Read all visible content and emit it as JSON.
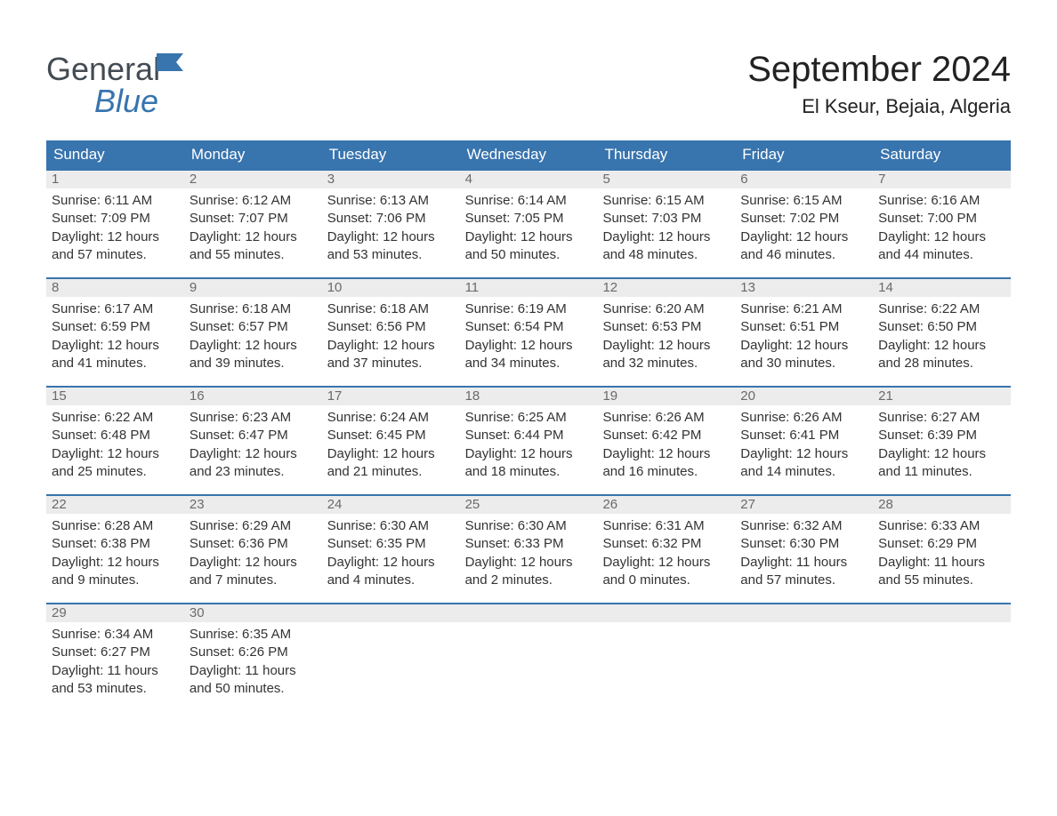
{
  "brand": {
    "general": "General",
    "blue": "Blue"
  },
  "title": "September 2024",
  "location": "El Kseur, Bejaia, Algeria",
  "colors": {
    "primary": "#3874ae",
    "header_bg": "#ececec",
    "text": "#333333",
    "daynum": "#6a6a6a",
    "white": "#ffffff"
  },
  "dayNames": [
    "Sunday",
    "Monday",
    "Tuesday",
    "Wednesday",
    "Thursday",
    "Friday",
    "Saturday"
  ],
  "labels": {
    "sunrise": "Sunrise",
    "sunset": "Sunset",
    "daylight": "Daylight"
  },
  "days": [
    {
      "n": 1,
      "sunrise": "6:11 AM",
      "sunset": "7:09 PM",
      "dl": "12 hours and 57 minutes."
    },
    {
      "n": 2,
      "sunrise": "6:12 AM",
      "sunset": "7:07 PM",
      "dl": "12 hours and 55 minutes."
    },
    {
      "n": 3,
      "sunrise": "6:13 AM",
      "sunset": "7:06 PM",
      "dl": "12 hours and 53 minutes."
    },
    {
      "n": 4,
      "sunrise": "6:14 AM",
      "sunset": "7:05 PM",
      "dl": "12 hours and 50 minutes."
    },
    {
      "n": 5,
      "sunrise": "6:15 AM",
      "sunset": "7:03 PM",
      "dl": "12 hours and 48 minutes."
    },
    {
      "n": 6,
      "sunrise": "6:15 AM",
      "sunset": "7:02 PM",
      "dl": "12 hours and 46 minutes."
    },
    {
      "n": 7,
      "sunrise": "6:16 AM",
      "sunset": "7:00 PM",
      "dl": "12 hours and 44 minutes."
    },
    {
      "n": 8,
      "sunrise": "6:17 AM",
      "sunset": "6:59 PM",
      "dl": "12 hours and 41 minutes."
    },
    {
      "n": 9,
      "sunrise": "6:18 AM",
      "sunset": "6:57 PM",
      "dl": "12 hours and 39 minutes."
    },
    {
      "n": 10,
      "sunrise": "6:18 AM",
      "sunset": "6:56 PM",
      "dl": "12 hours and 37 minutes."
    },
    {
      "n": 11,
      "sunrise": "6:19 AM",
      "sunset": "6:54 PM",
      "dl": "12 hours and 34 minutes."
    },
    {
      "n": 12,
      "sunrise": "6:20 AM",
      "sunset": "6:53 PM",
      "dl": "12 hours and 32 minutes."
    },
    {
      "n": 13,
      "sunrise": "6:21 AM",
      "sunset": "6:51 PM",
      "dl": "12 hours and 30 minutes."
    },
    {
      "n": 14,
      "sunrise": "6:22 AM",
      "sunset": "6:50 PM",
      "dl": "12 hours and 28 minutes."
    },
    {
      "n": 15,
      "sunrise": "6:22 AM",
      "sunset": "6:48 PM",
      "dl": "12 hours and 25 minutes."
    },
    {
      "n": 16,
      "sunrise": "6:23 AM",
      "sunset": "6:47 PM",
      "dl": "12 hours and 23 minutes."
    },
    {
      "n": 17,
      "sunrise": "6:24 AM",
      "sunset": "6:45 PM",
      "dl": "12 hours and 21 minutes."
    },
    {
      "n": 18,
      "sunrise": "6:25 AM",
      "sunset": "6:44 PM",
      "dl": "12 hours and 18 minutes."
    },
    {
      "n": 19,
      "sunrise": "6:26 AM",
      "sunset": "6:42 PM",
      "dl": "12 hours and 16 minutes."
    },
    {
      "n": 20,
      "sunrise": "6:26 AM",
      "sunset": "6:41 PM",
      "dl": "12 hours and 14 minutes."
    },
    {
      "n": 21,
      "sunrise": "6:27 AM",
      "sunset": "6:39 PM",
      "dl": "12 hours and 11 minutes."
    },
    {
      "n": 22,
      "sunrise": "6:28 AM",
      "sunset": "6:38 PM",
      "dl": "12 hours and 9 minutes."
    },
    {
      "n": 23,
      "sunrise": "6:29 AM",
      "sunset": "6:36 PM",
      "dl": "12 hours and 7 minutes."
    },
    {
      "n": 24,
      "sunrise": "6:30 AM",
      "sunset": "6:35 PM",
      "dl": "12 hours and 4 minutes."
    },
    {
      "n": 25,
      "sunrise": "6:30 AM",
      "sunset": "6:33 PM",
      "dl": "12 hours and 2 minutes."
    },
    {
      "n": 26,
      "sunrise": "6:31 AM",
      "sunset": "6:32 PM",
      "dl": "12 hours and 0 minutes."
    },
    {
      "n": 27,
      "sunrise": "6:32 AM",
      "sunset": "6:30 PM",
      "dl": "11 hours and 57 minutes."
    },
    {
      "n": 28,
      "sunrise": "6:33 AM",
      "sunset": "6:29 PM",
      "dl": "11 hours and 55 minutes."
    },
    {
      "n": 29,
      "sunrise": "6:34 AM",
      "sunset": "6:27 PM",
      "dl": "11 hours and 53 minutes."
    },
    {
      "n": 30,
      "sunrise": "6:35 AM",
      "sunset": "6:26 PM",
      "dl": "11 hours and 50 minutes."
    }
  ],
  "layout": {
    "startDayOfWeek": 0,
    "totalCells": 35
  }
}
